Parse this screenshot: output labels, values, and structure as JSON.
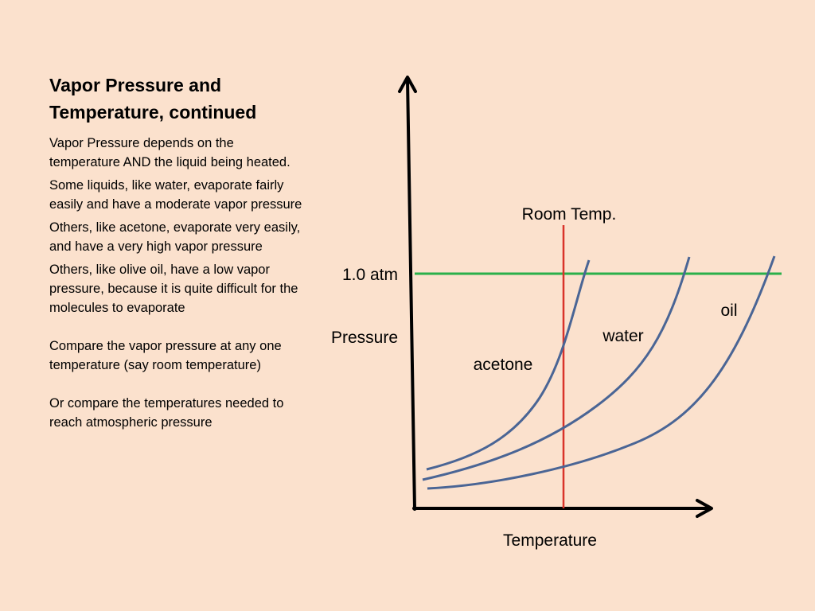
{
  "slide": {
    "title_line1": "Vapor Pressure and",
    "title_line2": "Temperature, continued",
    "paragraphs": [
      "Vapor Pressure depends on the temperature AND the liquid being heated.",
      "Some liquids, like water, evaporate fairly easily and have a moderate vapor pressure",
      "Others, like acetone, evaporate very easily, and have a very high vapor pressure",
      "Others, like olive oil, have a low vapor pressure, because it is quite difficult for the molecules to evaporate",
      "Compare the vapor pressure at any one temperature (say room temperature)",
      "Or compare the temperatures needed to reach atmospheric pressure"
    ]
  },
  "diagram": {
    "y_axis_label": "Pressure",
    "x_axis_label": "Temperature",
    "atm_label": "1.0 atm",
    "room_temp_label": "Room Temp.",
    "curves": [
      {
        "label": "acetone",
        "color": "#4a6595"
      },
      {
        "label": "water",
        "color": "#4a6595"
      },
      {
        "label": "oil",
        "color": "#4a6595"
      }
    ],
    "atm_line_color": "#2ab04a",
    "room_temp_line_color": "#d9332a",
    "axis_color": "#000000"
  }
}
